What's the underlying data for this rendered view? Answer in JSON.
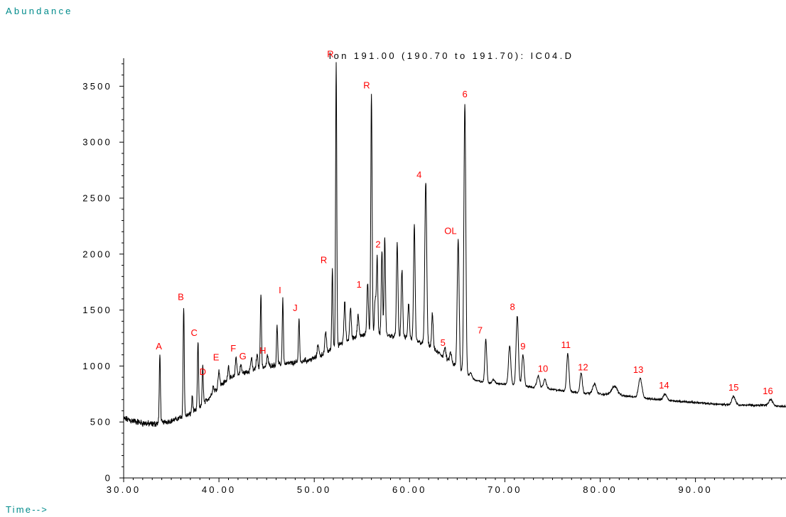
{
  "chart_data": {
    "type": "line",
    "title": "Ion 191.00 (190.70 to 191.70): IC04.D",
    "ylabel": "Abundance",
    "xlabel": "Time-->",
    "xlim": [
      30,
      99.5
    ],
    "ylim": [
      0,
      3750
    ],
    "grid": false,
    "colors": {
      "trace": "#000000",
      "peak_label": "#ff0000",
      "axis_label": "#008b8b"
    },
    "x_ticks": [
      30,
      40,
      50,
      60,
      70,
      80,
      90
    ],
    "x_tick_labels": [
      "30.00",
      "40.00",
      "50.00",
      "60.00",
      "70.00",
      "80.00",
      "90.00"
    ],
    "y_ticks": [
      0,
      500,
      1000,
      1500,
      2000,
      2500,
      3000,
      3500
    ],
    "y_tick_labels": [
      "0",
      "500",
      "1000",
      "1500",
      "2000",
      "2500",
      "3000",
      "3500"
    ],
    "baseline": [
      [
        30,
        530
      ],
      [
        32,
        490
      ],
      [
        33,
        480
      ],
      [
        35,
        510
      ],
      [
        36,
        540
      ],
      [
        37,
        570
      ],
      [
        38,
        630
      ],
      [
        39,
        720
      ],
      [
        40,
        820
      ],
      [
        41,
        880
      ],
      [
        42,
        920
      ],
      [
        43,
        950
      ],
      [
        45,
        1000
      ],
      [
        47,
        1020
      ],
      [
        49,
        1040
      ],
      [
        50,
        1070
      ],
      [
        51,
        1110
      ],
      [
        52,
        1160
      ],
      [
        53,
        1210
      ],
      [
        54,
        1250
      ],
      [
        55,
        1280
      ],
      [
        57,
        1290
      ],
      [
        58,
        1270
      ],
      [
        60,
        1250
      ],
      [
        62,
        1180
      ],
      [
        63,
        1120
      ],
      [
        64,
        1050
      ],
      [
        65,
        990
      ],
      [
        66,
        920
      ],
      [
        67,
        870
      ],
      [
        68,
        850
      ],
      [
        70,
        840
      ],
      [
        72,
        820
      ],
      [
        74,
        800
      ],
      [
        76,
        780
      ],
      [
        78,
        760
      ],
      [
        80,
        750
      ],
      [
        83,
        730
      ],
      [
        86,
        700
      ],
      [
        89,
        680
      ],
      [
        92,
        660
      ],
      [
        95,
        650
      ],
      [
        97,
        650
      ],
      [
        99.5,
        640
      ]
    ],
    "peaks": [
      [
        33.8,
        1100,
        0.06
      ],
      [
        36.3,
        1540,
        0.06
      ],
      [
        37.8,
        1220,
        0.06
      ],
      [
        38.3,
        1000,
        0.06
      ],
      [
        37.2,
        730,
        0.06
      ],
      [
        39.4,
        820,
        0.08
      ],
      [
        40.0,
        960,
        0.08
      ],
      [
        41.0,
        1000,
        0.08
      ],
      [
        41.8,
        1080,
        0.08
      ],
      [
        42.3,
        1010,
        0.08
      ],
      [
        43.4,
        1070,
        0.08
      ],
      [
        44.0,
        1100,
        0.08
      ],
      [
        44.4,
        1660,
        0.06
      ],
      [
        45.1,
        1090,
        0.08
      ],
      [
        46.1,
        1370,
        0.06
      ],
      [
        46.7,
        1600,
        0.06
      ],
      [
        48.4,
        1440,
        0.06
      ],
      [
        49.0,
        1060,
        0.08
      ],
      [
        50.4,
        1200,
        0.08
      ],
      [
        51.2,
        1310,
        0.08
      ],
      [
        51.9,
        1870,
        0.06
      ],
      [
        52.3,
        3720,
        0.06
      ],
      [
        53.2,
        1570,
        0.08
      ],
      [
        53.8,
        1520,
        0.08
      ],
      [
        54.6,
        1450,
        0.08
      ],
      [
        55.6,
        1730,
        0.08
      ],
      [
        56.0,
        3440,
        0.07
      ],
      [
        56.4,
        1600,
        0.08
      ],
      [
        56.6,
        1970,
        0.07
      ],
      [
        57.1,
        2040,
        0.07
      ],
      [
        57.4,
        2150,
        0.07
      ],
      [
        58.7,
        2090,
        0.08
      ],
      [
        59.2,
        1860,
        0.08
      ],
      [
        59.9,
        1560,
        0.08
      ],
      [
        60.5,
        2250,
        0.08
      ],
      [
        61.7,
        2640,
        0.1
      ],
      [
        62.4,
        1470,
        0.08
      ],
      [
        63.7,
        1160,
        0.1
      ],
      [
        64.3,
        1120,
        0.1
      ],
      [
        65.1,
        2130,
        0.1
      ],
      [
        65.8,
        3350,
        0.1
      ],
      [
        66.4,
        940,
        0.12
      ],
      [
        68.0,
        1240,
        0.1
      ],
      [
        68.8,
        880,
        0.12
      ],
      [
        70.5,
        1180,
        0.12
      ],
      [
        71.3,
        1450,
        0.12
      ],
      [
        71.9,
        1100,
        0.12
      ],
      [
        73.5,
        910,
        0.15
      ],
      [
        74.2,
        880,
        0.15
      ],
      [
        76.6,
        1110,
        0.12
      ],
      [
        78.0,
        940,
        0.12
      ],
      [
        79.4,
        840,
        0.18
      ],
      [
        81.5,
        820,
        0.3
      ],
      [
        84.2,
        890,
        0.18
      ],
      [
        86.8,
        750,
        0.18
      ],
      [
        94.0,
        730,
        0.18
      ],
      [
        97.9,
        700,
        0.2
      ]
    ],
    "annotations": [
      {
        "text": "A",
        "x": 33.7,
        "y": 1150
      },
      {
        "text": "B",
        "x": 36.0,
        "y": 1590
      },
      {
        "text": "C",
        "x": 37.4,
        "y": 1270
      },
      {
        "text": "D",
        "x": 38.3,
        "y": 920
      },
      {
        "text": "E",
        "x": 39.7,
        "y": 1050
      },
      {
        "text": "F",
        "x": 41.5,
        "y": 1130
      },
      {
        "text": "G",
        "x": 42.5,
        "y": 1060
      },
      {
        "text": "H",
        "x": 44.6,
        "y": 1110
      },
      {
        "text": "I",
        "x": 46.4,
        "y": 1650
      },
      {
        "text": "J",
        "x": 48.0,
        "y": 1490
      },
      {
        "text": "R",
        "x": 51.0,
        "y": 1920
      },
      {
        "text": "R",
        "x": 51.7,
        "y": 3760
      },
      {
        "text": "R",
        "x": 55.5,
        "y": 3480
      },
      {
        "text": "1",
        "x": 54.7,
        "y": 1700
      },
      {
        "text": "2",
        "x": 56.7,
        "y": 2060
      },
      {
        "text": "4",
        "x": 61.0,
        "y": 2680
      },
      {
        "text": "5",
        "x": 63.5,
        "y": 1180
      },
      {
        "text": "OL",
        "x": 64.3,
        "y": 2180
      },
      {
        "text": "6",
        "x": 65.8,
        "y": 3400
      },
      {
        "text": "7",
        "x": 67.4,
        "y": 1290
      },
      {
        "text": "8",
        "x": 70.8,
        "y": 1500
      },
      {
        "text": "9",
        "x": 71.9,
        "y": 1150
      },
      {
        "text": "10",
        "x": 74.0,
        "y": 950
      },
      {
        "text": "11",
        "x": 76.4,
        "y": 1160
      },
      {
        "text": "12",
        "x": 78.2,
        "y": 960
      },
      {
        "text": "13",
        "x": 84.0,
        "y": 940
      },
      {
        "text": "14",
        "x": 86.7,
        "y": 800
      },
      {
        "text": "15",
        "x": 94.0,
        "y": 780
      },
      {
        "text": "16",
        "x": 97.6,
        "y": 750
      }
    ]
  }
}
